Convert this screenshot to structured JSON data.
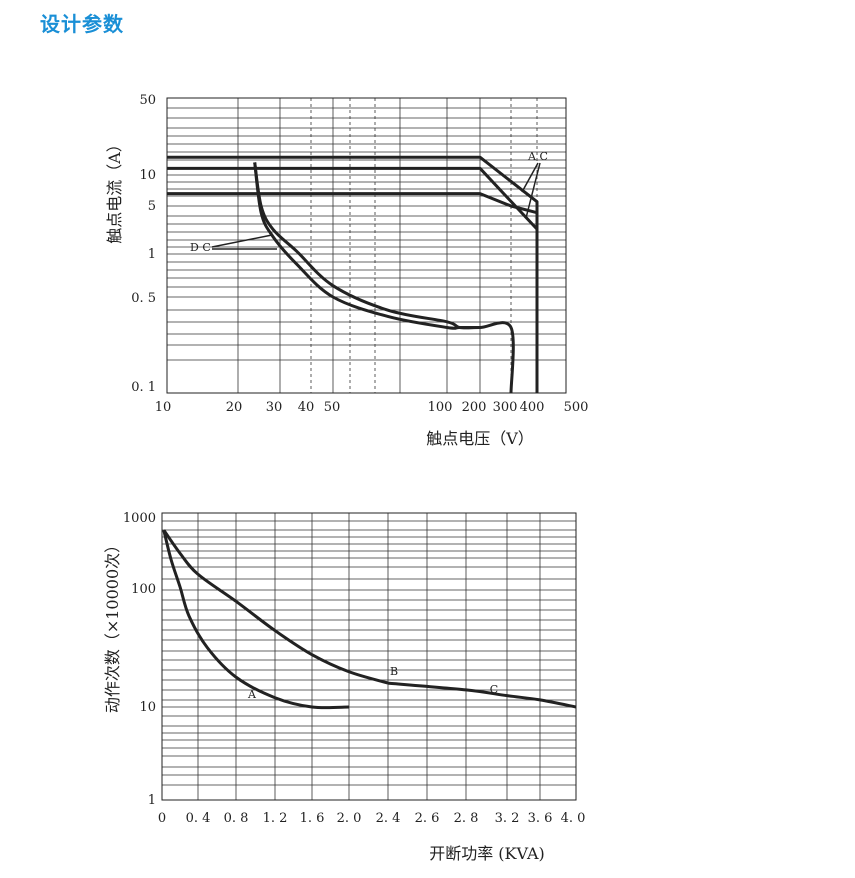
{
  "section_title": "设计参数",
  "chart_data": [
    {
      "type": "line",
      "xlabel": "触点电压（V）",
      "ylabel": "触点电流（A）",
      "x_scale": "log",
      "y_scale": "log",
      "xlim": [
        10,
        500
      ],
      "ylim": [
        0.1,
        50
      ],
      "x_ticks": [
        "10",
        "20",
        "30",
        "40",
        "50",
        "100",
        "200",
        "300",
        "400",
        "500"
      ],
      "y_ticks": [
        "0. 1",
        "0. 5",
        "1",
        "5",
        "10",
        "50"
      ],
      "annotations": [
        "A C",
        "D C"
      ],
      "series": [
        {
          "points": [
            [
              10,
              14.5
            ],
            [
              200,
              14.5
            ],
            [
              400,
              5.5
            ],
            [
              400,
              0.1
            ]
          ]
        },
        {
          "points": [
            [
              10,
              11.5
            ],
            [
              200,
              11.5
            ],
            [
              400,
              2.3
            ]
          ]
        },
        {
          "points": [
            [
              10,
              6.6
            ],
            [
              200,
              6.6
            ],
            [
              300,
              5
            ],
            [
              400,
              4
            ]
          ]
        },
        {
          "points": [
            [
              23.5,
              13
            ],
            [
              25,
              5
            ],
            [
              28,
              2.3
            ],
            [
              35,
              1.1
            ],
            [
              50,
              0.6
            ],
            [
              70,
              0.4
            ],
            [
              100,
              0.33
            ],
            [
              130,
              0.3
            ],
            [
              200,
              0.3
            ],
            [
              300,
              0.3
            ],
            [
              300,
              0.1
            ]
          ]
        },
        {
          "points": [
            [
              23.5,
              13
            ],
            [
              25,
              4
            ],
            [
              28,
              1.8
            ],
            [
              35,
              0.85
            ],
            [
              50,
              0.5
            ],
            [
              70,
              0.36
            ],
            [
              100,
              0.3
            ],
            [
              130,
              0.3
            ],
            [
              200,
              0.3
            ]
          ]
        }
      ]
    },
    {
      "type": "line",
      "xlabel": "开断功率 (KVA)",
      "ylabel": "动作次数（×10000次）",
      "y_scale": "log",
      "xlim": [
        0,
        4.0
      ],
      "ylim": [
        1,
        1000
      ],
      "x_ticks": [
        "0",
        "0. 4",
        "0. 8",
        "1. 2",
        "1. 6",
        "2. 0",
        "2. 4",
        "2. 6",
        "2. 8",
        "3. 2",
        "3. 6",
        "4. 0"
      ],
      "y_ticks": [
        "1",
        "10",
        "100",
        "1000"
      ],
      "series": [
        {
          "name": "A",
          "x": [
            0.02,
            0.1,
            0.2,
            0.3,
            0.5,
            0.8,
            1.2,
            1.6,
            2.0
          ],
          "values": [
            600,
            250,
            110,
            60,
            32,
            18,
            12,
            10,
            10
          ]
        },
        {
          "name": "B",
          "x": [
            0.02,
            0.2,
            0.4,
            0.8,
            1.2,
            1.6,
            2.0,
            2.4
          ],
          "values": [
            600,
            300,
            160,
            80,
            45,
            28,
            20,
            16
          ]
        },
        {
          "name": "C",
          "x": [
            2.4,
            2.8,
            3.2,
            3.6,
            4.0
          ],
          "values": [
            16,
            14,
            12.5,
            11.5,
            10
          ]
        }
      ]
    }
  ]
}
